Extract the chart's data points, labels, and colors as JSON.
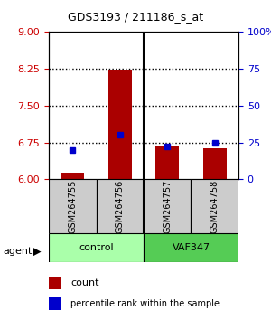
{
  "title": "GDS3193 / 211186_s_at",
  "samples": [
    "GSM264755",
    "GSM264756",
    "GSM264757",
    "GSM264758"
  ],
  "count_values": [
    6.13,
    8.24,
    6.68,
    6.63
  ],
  "percentile_values": [
    20,
    30,
    22,
    25
  ],
  "ymin": 6,
  "ymax": 9,
  "yticks_left": [
    6,
    6.75,
    7.5,
    8.25,
    9
  ],
  "yticks_right": [
    0,
    25,
    50,
    75,
    100
  ],
  "hlines": [
    6.75,
    7.5,
    8.25
  ],
  "agents": [
    {
      "label": "control",
      "samples": [
        0,
        1
      ],
      "color": "#aaffaa"
    },
    {
      "label": "VAF347",
      "samples": [
        2,
        3
      ],
      "color": "#55cc55"
    }
  ],
  "bar_color": "#aa0000",
  "marker_color": "#0000cc",
  "bar_width": 0.5,
  "sample_box_color": "#cccccc",
  "agent_label_color": "black",
  "left_axis_color": "#cc0000",
  "right_axis_color": "#0000cc"
}
